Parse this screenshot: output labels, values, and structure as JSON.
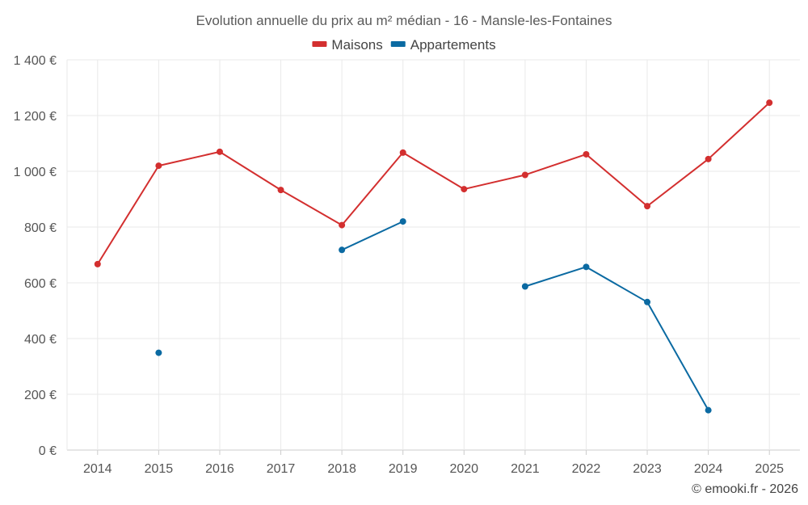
{
  "chart_data": {
    "type": "line",
    "title": "Evolution annuelle du prix au m² médian - 16 - Mansle-les-Fontaines",
    "categories": [
      "2014",
      "2015",
      "2016",
      "2017",
      "2018",
      "2019",
      "2020",
      "2021",
      "2022",
      "2023",
      "2024",
      "2025"
    ],
    "ylim": [
      0,
      1400
    ],
    "yticks": [
      0,
      200,
      400,
      600,
      800,
      1000,
      1200,
      1400
    ],
    "ytick_labels": [
      "0 €",
      "200 €",
      "400 €",
      "600 €",
      "800 €",
      "1 000 €",
      "1 200 €",
      "1 400 €"
    ],
    "legend_position": "top-center",
    "grid": true,
    "series": [
      {
        "name": "Maisons",
        "color": "#d32f2f",
        "values": [
          667,
          1020,
          1070,
          933,
          807,
          1067,
          936,
          987,
          1061,
          875,
          1044,
          1246
        ]
      },
      {
        "name": "Appartements",
        "color": "#0b6aa2",
        "values": [
          null,
          349,
          null,
          null,
          718,
          820,
          null,
          587,
          657,
          531,
          143,
          null
        ]
      }
    ]
  },
  "credit": "© emooki.fr - 2026"
}
